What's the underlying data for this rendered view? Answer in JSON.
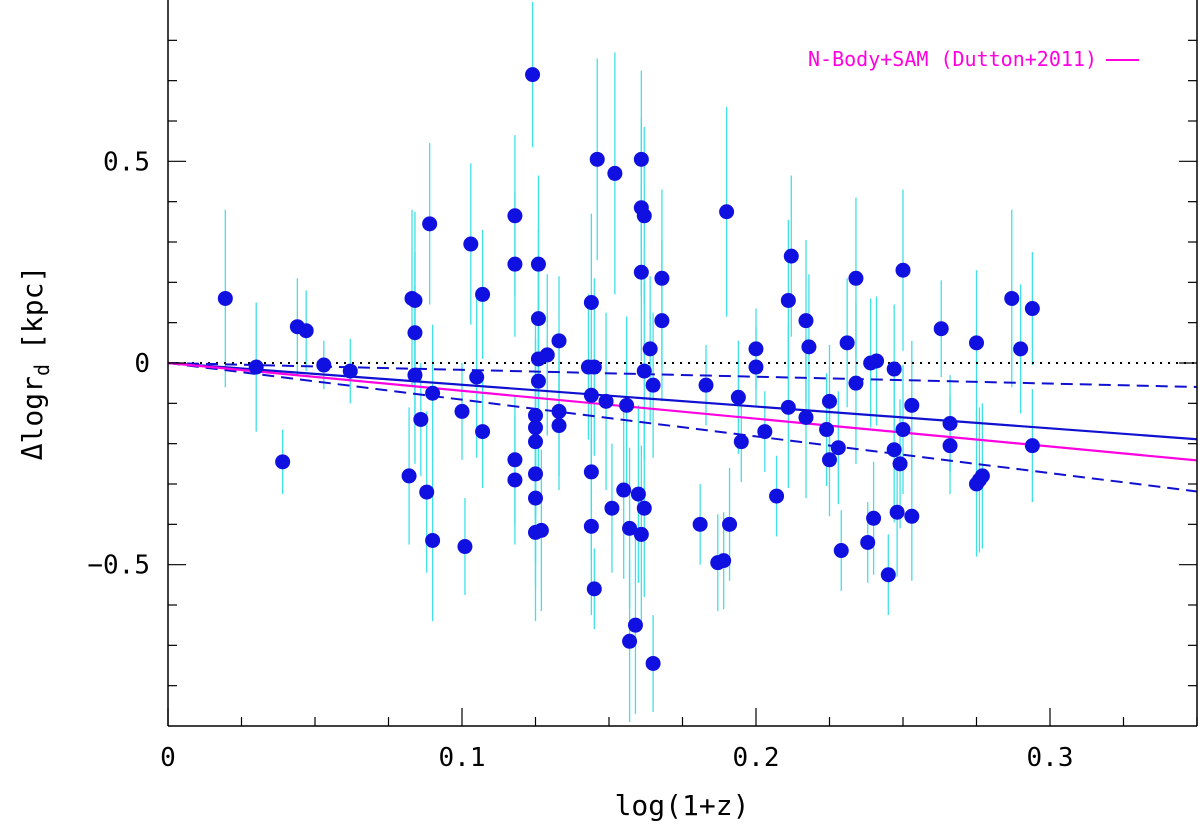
{
  "chart_data": {
    "type": "scatter",
    "xlabel": "log(1+z)",
    "ylabel_prefix": "Δlogr",
    "ylabel_subscript": "d",
    "ylabel_suffix": "[kpc]",
    "xlim": [
      0,
      0.35
    ],
    "ylim": [
      -0.9,
      0.9
    ],
    "x_ticks": [
      {
        "value": 0,
        "label": "0"
      },
      {
        "value": 0.1,
        "label": "0.1"
      },
      {
        "value": 0.2,
        "label": "0.2"
      },
      {
        "value": 0.3,
        "label": "0.3"
      }
    ],
    "y_ticks": [
      {
        "value": -0.5,
        "label": "−0.5"
      },
      {
        "value": 0,
        "label": "0"
      },
      {
        "value": 0.5,
        "label": "0.5"
      }
    ],
    "x_minor_step": 0.025,
    "y_minor_step": 0.1,
    "colors": {
      "points": "#1010e0",
      "errorbars": "#40e0e8",
      "fit": "#1010d0",
      "model": "#ff00e0",
      "reference": "#000000"
    },
    "legend": {
      "label": "N-Body+SAM (Dutton+2011)",
      "position": "top-right"
    },
    "lines": [
      {
        "name": "zero-reference",
        "style": "dotted",
        "slope": 0.0,
        "intercept": 0
      },
      {
        "name": "best-fit",
        "style": "solid",
        "slope": -0.54,
        "intercept": 0
      },
      {
        "name": "fit-upper-bound",
        "style": "dashed",
        "slope": -0.17,
        "intercept": 0
      },
      {
        "name": "fit-lower-bound",
        "style": "dashed",
        "slope": -0.91,
        "intercept": 0
      },
      {
        "name": "N-Body+SAM (Dutton+2011)",
        "style": "model",
        "slope": -0.69,
        "intercept": 0
      }
    ],
    "points": [
      {
        "x": 0.0195,
        "y": 0.16,
        "err": 0.22
      },
      {
        "x": 0.03,
        "y": -0.01,
        "err": 0.16
      },
      {
        "x": 0.039,
        "y": -0.245,
        "err": 0.08
      },
      {
        "x": 0.044,
        "y": 0.09,
        "err": 0.12
      },
      {
        "x": 0.047,
        "y": 0.08,
        "err": 0.1
      },
      {
        "x": 0.053,
        "y": -0.005,
        "err": 0.06
      },
      {
        "x": 0.062,
        "y": -0.02,
        "err": 0.08
      },
      {
        "x": 0.082,
        "y": -0.28,
        "err": 0.17
      },
      {
        "x": 0.083,
        "y": 0.16,
        "err": 0.22
      },
      {
        "x": 0.084,
        "y": 0.155,
        "err": 0.22
      },
      {
        "x": 0.084,
        "y": 0.075,
        "err": 0.2
      },
      {
        "x": 0.084,
        "y": -0.03,
        "err": 0.22
      },
      {
        "x": 0.086,
        "y": -0.14,
        "err": 0.14
      },
      {
        "x": 0.088,
        "y": -0.32,
        "err": 0.2
      },
      {
        "x": 0.089,
        "y": 0.345,
        "err": 0.2
      },
      {
        "x": 0.09,
        "y": -0.075,
        "err": 0.17
      },
      {
        "x": 0.09,
        "y": -0.44,
        "err": 0.2
      },
      {
        "x": 0.1,
        "y": -0.12,
        "err": 0.12
      },
      {
        "x": 0.101,
        "y": -0.455,
        "err": 0.12
      },
      {
        "x": 0.103,
        "y": 0.295,
        "err": 0.2
      },
      {
        "x": 0.105,
        "y": -0.035,
        "err": 0.2
      },
      {
        "x": 0.107,
        "y": 0.17,
        "err": 0.16
      },
      {
        "x": 0.107,
        "y": -0.17,
        "err": 0.14
      },
      {
        "x": 0.118,
        "y": 0.365,
        "err": 0.2
      },
      {
        "x": 0.118,
        "y": 0.245,
        "err": 0.18
      },
      {
        "x": 0.118,
        "y": -0.24,
        "err": 0.16
      },
      {
        "x": 0.118,
        "y": -0.29,
        "err": 0.16
      },
      {
        "x": 0.124,
        "y": 0.715,
        "err": 0.18
      },
      {
        "x": 0.125,
        "y": -0.13,
        "err": 0.24
      },
      {
        "x": 0.125,
        "y": -0.16,
        "err": 0.22
      },
      {
        "x": 0.125,
        "y": -0.195,
        "err": 0.22
      },
      {
        "x": 0.125,
        "y": -0.275,
        "err": 0.22
      },
      {
        "x": 0.125,
        "y": -0.335,
        "err": 0.22
      },
      {
        "x": 0.125,
        "y": -0.42,
        "err": 0.22
      },
      {
        "x": 0.126,
        "y": 0.245,
        "err": 0.22
      },
      {
        "x": 0.126,
        "y": 0.11,
        "err": 0.22
      },
      {
        "x": 0.126,
        "y": 0.01,
        "err": 0.22
      },
      {
        "x": 0.126,
        "y": -0.045,
        "err": 0.22
      },
      {
        "x": 0.127,
        "y": -0.415,
        "err": 0.2
      },
      {
        "x": 0.129,
        "y": 0.02,
        "err": 0.2
      },
      {
        "x": 0.133,
        "y": 0.055,
        "err": 0.16
      },
      {
        "x": 0.133,
        "y": -0.12,
        "err": 0.16
      },
      {
        "x": 0.133,
        "y": -0.155,
        "err": 0.16
      },
      {
        "x": 0.143,
        "y": -0.01,
        "err": 0.18
      },
      {
        "x": 0.144,
        "y": 0.15,
        "err": 0.22
      },
      {
        "x": 0.144,
        "y": -0.08,
        "err": 0.2
      },
      {
        "x": 0.144,
        "y": -0.27,
        "err": 0.22
      },
      {
        "x": 0.144,
        "y": -0.405,
        "err": 0.22
      },
      {
        "x": 0.145,
        "y": -0.01,
        "err": 0.22
      },
      {
        "x": 0.145,
        "y": -0.56,
        "err": 0.1
      },
      {
        "x": 0.146,
        "y": 0.505,
        "err": 0.25
      },
      {
        "x": 0.149,
        "y": -0.095,
        "err": 0.22
      },
      {
        "x": 0.151,
        "y": -0.36,
        "err": 0.16
      },
      {
        "x": 0.152,
        "y": 0.47,
        "err": 0.3
      },
      {
        "x": 0.155,
        "y": -0.315,
        "err": 0.22
      },
      {
        "x": 0.156,
        "y": -0.105,
        "err": 0.22
      },
      {
        "x": 0.157,
        "y": -0.69,
        "err": 0.2
      },
      {
        "x": 0.157,
        "y": -0.41,
        "err": 0.2
      },
      {
        "x": 0.159,
        "y": -0.65,
        "err": 0.22
      },
      {
        "x": 0.16,
        "y": -0.325,
        "err": 0.22
      },
      {
        "x": 0.161,
        "y": 0.505,
        "err": 0.22
      },
      {
        "x": 0.161,
        "y": 0.385,
        "err": 0.22
      },
      {
        "x": 0.161,
        "y": 0.225,
        "err": 0.22
      },
      {
        "x": 0.161,
        "y": -0.425,
        "err": 0.22
      },
      {
        "x": 0.162,
        "y": 0.365,
        "err": 0.22
      },
      {
        "x": 0.162,
        "y": -0.02,
        "err": 0.22
      },
      {
        "x": 0.162,
        "y": -0.36,
        "err": 0.22
      },
      {
        "x": 0.164,
        "y": 0.035,
        "err": 0.18
      },
      {
        "x": 0.165,
        "y": -0.055,
        "err": 0.18
      },
      {
        "x": 0.165,
        "y": -0.745,
        "err": 0.12
      },
      {
        "x": 0.168,
        "y": 0.21,
        "err": 0.22
      },
      {
        "x": 0.168,
        "y": 0.105,
        "err": 0.2
      },
      {
        "x": 0.181,
        "y": -0.4,
        "err": 0.1
      },
      {
        "x": 0.183,
        "y": -0.055,
        "err": 0.1
      },
      {
        "x": 0.187,
        "y": -0.495,
        "err": 0.12
      },
      {
        "x": 0.189,
        "y": -0.49,
        "err": 0.12
      },
      {
        "x": 0.19,
        "y": 0.375,
        "err": 0.26
      },
      {
        "x": 0.191,
        "y": -0.4,
        "err": 0.14
      },
      {
        "x": 0.194,
        "y": -0.085,
        "err": 0.14
      },
      {
        "x": 0.195,
        "y": -0.195,
        "err": 0.1
      },
      {
        "x": 0.2,
        "y": 0.035,
        "err": 0.1
      },
      {
        "x": 0.2,
        "y": -0.01,
        "err": 0.1
      },
      {
        "x": 0.203,
        "y": -0.17,
        "err": 0.1
      },
      {
        "x": 0.207,
        "y": -0.33,
        "err": 0.1
      },
      {
        "x": 0.211,
        "y": 0.155,
        "err": 0.2
      },
      {
        "x": 0.211,
        "y": -0.11,
        "err": 0.2
      },
      {
        "x": 0.212,
        "y": 0.265,
        "err": 0.2
      },
      {
        "x": 0.217,
        "y": 0.105,
        "err": 0.2
      },
      {
        "x": 0.217,
        "y": -0.135,
        "err": 0.2
      },
      {
        "x": 0.218,
        "y": 0.04,
        "err": 0.18
      },
      {
        "x": 0.224,
        "y": -0.165,
        "err": 0.14
      },
      {
        "x": 0.225,
        "y": -0.095,
        "err": 0.14
      },
      {
        "x": 0.225,
        "y": -0.24,
        "err": 0.14
      },
      {
        "x": 0.228,
        "y": -0.21,
        "err": 0.14
      },
      {
        "x": 0.229,
        "y": -0.465,
        "err": 0.1
      },
      {
        "x": 0.231,
        "y": 0.05,
        "err": 0.16
      },
      {
        "x": 0.234,
        "y": 0.21,
        "err": 0.2
      },
      {
        "x": 0.234,
        "y": -0.05,
        "err": 0.2
      },
      {
        "x": 0.238,
        "y": -0.445,
        "err": 0.1
      },
      {
        "x": 0.239,
        "y": 0.0,
        "err": 0.16
      },
      {
        "x": 0.24,
        "y": -0.385,
        "err": 0.14
      },
      {
        "x": 0.241,
        "y": 0.005,
        "err": 0.16
      },
      {
        "x": 0.245,
        "y": -0.525,
        "err": 0.1
      },
      {
        "x": 0.247,
        "y": -0.015,
        "err": 0.16
      },
      {
        "x": 0.247,
        "y": -0.215,
        "err": 0.18
      },
      {
        "x": 0.248,
        "y": -0.37,
        "err": 0.16
      },
      {
        "x": 0.249,
        "y": -0.25,
        "err": 0.16
      },
      {
        "x": 0.25,
        "y": 0.23,
        "err": 0.2
      },
      {
        "x": 0.25,
        "y": -0.165,
        "err": 0.16
      },
      {
        "x": 0.253,
        "y": -0.105,
        "err": 0.16
      },
      {
        "x": 0.253,
        "y": -0.38,
        "err": 0.16
      },
      {
        "x": 0.263,
        "y": 0.085,
        "err": 0.12
      },
      {
        "x": 0.266,
        "y": -0.15,
        "err": 0.12
      },
      {
        "x": 0.266,
        "y": -0.205,
        "err": 0.12
      },
      {
        "x": 0.275,
        "y": 0.05,
        "err": 0.18
      },
      {
        "x": 0.275,
        "y": -0.3,
        "err": 0.18
      },
      {
        "x": 0.276,
        "y": -0.29,
        "err": 0.18
      },
      {
        "x": 0.277,
        "y": -0.28,
        "err": 0.18
      },
      {
        "x": 0.287,
        "y": 0.16,
        "err": 0.22
      },
      {
        "x": 0.29,
        "y": 0.035,
        "err": 0.16
      },
      {
        "x": 0.294,
        "y": 0.135,
        "err": 0.14
      },
      {
        "x": 0.294,
        "y": -0.205,
        "err": 0.14
      }
    ]
  }
}
